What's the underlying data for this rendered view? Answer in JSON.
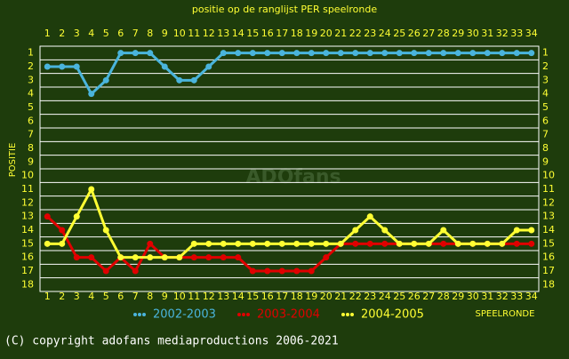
{
  "chart_data": {
    "type": "line",
    "title": "positie op de ranglijst PER speelronde",
    "x_label": "SPEELRONDE",
    "y_label": "POSITIE",
    "watermark": "ADOfans",
    "footer": "(C) copyright adofans mediaproductions 2006-2021",
    "x": [
      1,
      2,
      3,
      4,
      5,
      6,
      7,
      8,
      9,
      10,
      11,
      12,
      13,
      14,
      15,
      16,
      17,
      18,
      19,
      20,
      21,
      22,
      23,
      24,
      25,
      26,
      27,
      28,
      29,
      30,
      31,
      32,
      33,
      34
    ],
    "xlim": [
      0.5,
      34.5
    ],
    "xticks": [
      1,
      2,
      3,
      4,
      5,
      6,
      7,
      8,
      9,
      10,
      11,
      12,
      13,
      14,
      15,
      16,
      17,
      18,
      19,
      20,
      21,
      22,
      23,
      24,
      25,
      26,
      27,
      28,
      29,
      30,
      31,
      32,
      33,
      34
    ],
    "ylim": [
      18.5,
      0.5
    ],
    "yticks": [
      1,
      2,
      3,
      4,
      5,
      6,
      7,
      8,
      9,
      10,
      11,
      12,
      13,
      14,
      15,
      16,
      17,
      18
    ],
    "inverted_y": true,
    "grid": true,
    "series": [
      {
        "name": "2002-2003",
        "color": "#4ab4dc",
        "values": [
          2,
          2,
          2,
          4,
          3,
          1,
          1,
          1,
          2,
          3,
          3,
          2,
          1,
          1,
          1,
          1,
          1,
          1,
          1,
          1,
          1,
          1,
          1,
          1,
          1,
          1,
          1,
          1,
          1,
          1,
          1,
          1,
          1,
          1
        ]
      },
      {
        "name": "2003-2004",
        "color": "#e00000",
        "values": [
          13,
          14,
          16,
          16,
          17,
          16,
          17,
          15,
          16,
          16,
          16,
          16,
          16,
          16,
          17,
          17,
          17,
          17,
          17,
          16,
          15,
          15,
          15,
          15,
          15,
          15,
          15,
          15,
          15,
          15,
          15,
          15,
          15,
          15
        ]
      },
      {
        "name": "2004-2005",
        "color": "#ffff33",
        "values": [
          15,
          15,
          13,
          11,
          14,
          16,
          16,
          16,
          16,
          16,
          15,
          15,
          15,
          15,
          15,
          15,
          15,
          15,
          15,
          15,
          15,
          14,
          13,
          14,
          15,
          15,
          15,
          14,
          15,
          15,
          15,
          15,
          14,
          14
        ]
      }
    ]
  }
}
